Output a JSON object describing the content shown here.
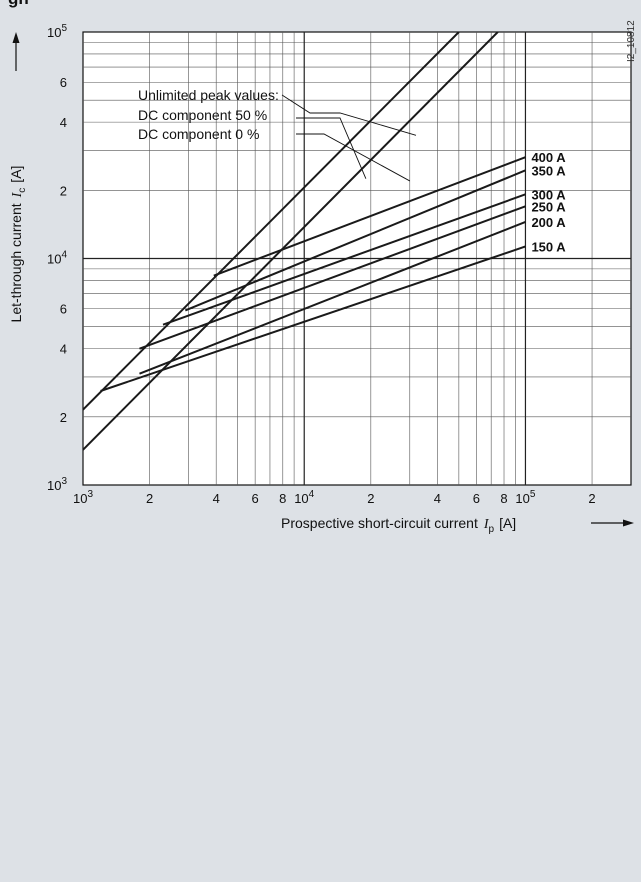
{
  "chart_data": {
    "type": "line",
    "title": "gh",
    "xscale": "log",
    "yscale": "log",
    "xlim": [
      1000,
      300000
    ],
    "ylim": [
      1000,
      100000
    ],
    "xlabel": "Prospective short-circuit current",
    "xlabel_symbol": "I",
    "xlabel_sub": "p",
    "xlabel_unit": "[A]",
    "ylabel": "Let-through current",
    "ylabel_symbol": "I",
    "ylabel_sub": "c",
    "ylabel_unit": "[A]",
    "x_ticks": [
      {
        "value": 1000,
        "base": "10",
        "exp": "3"
      },
      {
        "value": 2000,
        "base": "2",
        "exp": ""
      },
      {
        "value": 4000,
        "base": "4",
        "exp": ""
      },
      {
        "value": 6000,
        "base": "6",
        "exp": ""
      },
      {
        "value": 8000,
        "base": "8",
        "exp": ""
      },
      {
        "value": 10000,
        "base": "10",
        "exp": "4"
      },
      {
        "value": 20000,
        "base": "2",
        "exp": ""
      },
      {
        "value": 40000,
        "base": "4",
        "exp": ""
      },
      {
        "value": 60000,
        "base": "6",
        "exp": ""
      },
      {
        "value": 80000,
        "base": "8",
        "exp": ""
      },
      {
        "value": 100000,
        "base": "10",
        "exp": "5"
      },
      {
        "value": 200000,
        "base": "2",
        "exp": ""
      }
    ],
    "y_ticks": [
      {
        "value": 1000,
        "base": "10",
        "exp": "3"
      },
      {
        "value": 2000,
        "base": "2",
        "exp": ""
      },
      {
        "value": 4000,
        "base": "4",
        "exp": ""
      },
      {
        "value": 6000,
        "base": "6",
        "exp": ""
      },
      {
        "value": 10000,
        "base": "10",
        "exp": "4"
      },
      {
        "value": 20000,
        "base": "2",
        "exp": ""
      },
      {
        "value": 40000,
        "base": "4",
        "exp": ""
      },
      {
        "value": 60000,
        "base": "6",
        "exp": ""
      },
      {
        "value": 100000,
        "base": "10",
        "exp": "5"
      }
    ],
    "legend": {
      "heading": "Unlimited peak values:",
      "entries": [
        "DC component 50 %",
        "DC component   0 %"
      ]
    },
    "peak_lines": [
      {
        "name": "DC component 50 %",
        "x": [
          1000,
          50000
        ],
        "y": [
          2150,
          100000
        ]
      },
      {
        "name": "DC component 0 %",
        "x": [
          1000,
          75000
        ],
        "y": [
          1430,
          100000
        ]
      }
    ],
    "series": [
      {
        "name": "400 A",
        "x": [
          3900,
          100000
        ],
        "y": [
          8400,
          28000
        ]
      },
      {
        "name": "350 A",
        "x": [
          2900,
          100000
        ],
        "y": [
          5900,
          24500
        ]
      },
      {
        "name": "300 A",
        "x": [
          2300,
          100000
        ],
        "y": [
          5100,
          19200
        ]
      },
      {
        "name": "250 A",
        "x": [
          1800,
          100000
        ],
        "y": [
          4000,
          17000
        ]
      },
      {
        "name": "200 A",
        "x": [
          1800,
          100000
        ],
        "y": [
          3100,
          14500
        ]
      },
      {
        "name": "150 A",
        "x": [
          1200,
          100000
        ],
        "y": [
          2600,
          11300
        ]
      }
    ],
    "side_code": "I2_10812",
    "grid": true,
    "colors": {
      "line": "#1a1a1a",
      "grid": "#555555",
      "background": "#ffffff",
      "page": "#dde1e6"
    }
  }
}
